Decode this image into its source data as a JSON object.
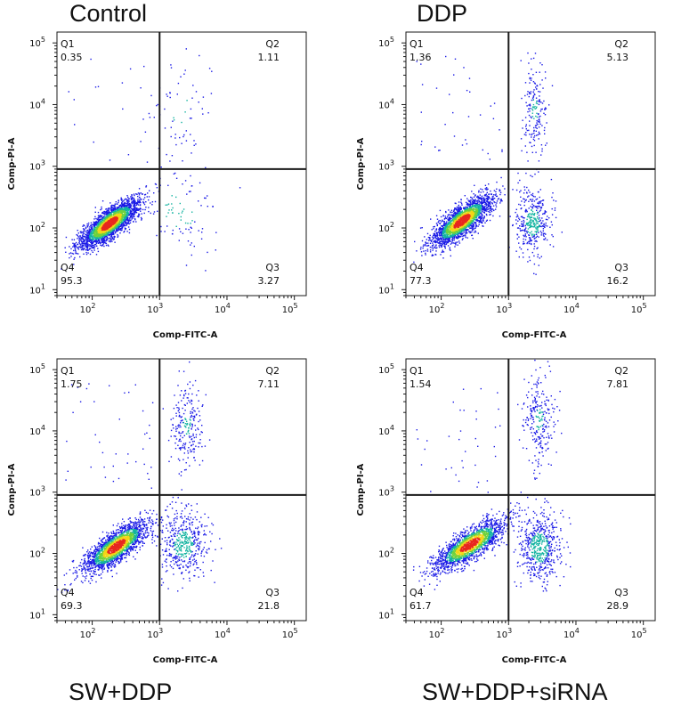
{
  "chart_data": [
    {
      "type": "scatter",
      "title": "Control",
      "xlabel": "Comp-FITC-A",
      "ylabel": "Comp-PI-A",
      "xscale": "log",
      "yscale": "log",
      "xlim": [
        30,
        150000
      ],
      "ylim": [
        8,
        150000
      ],
      "gate": {
        "x": 1000,
        "y": 900
      },
      "x_ticks": [
        {
          "base": "10",
          "exp": "2"
        },
        {
          "base": "10",
          "exp": "3"
        },
        {
          "base": "10",
          "exp": "4"
        },
        {
          "base": "10",
          "exp": "5"
        }
      ],
      "y_ticks": [
        {
          "base": "10",
          "exp": "1"
        },
        {
          "base": "10",
          "exp": "2"
        },
        {
          "base": "10",
          "exp": "3"
        },
        {
          "base": "10",
          "exp": "4"
        },
        {
          "base": "10",
          "exp": "5"
        }
      ],
      "quadrants": {
        "Q1": {
          "label": "Q1",
          "value": "0.35"
        },
        "Q2": {
          "label": "Q2",
          "value": "1.11"
        },
        "Q3": {
          "label": "Q3",
          "value": "3.27"
        },
        "Q4": {
          "label": "Q4",
          "value": "95.3"
        }
      }
    },
    {
      "type": "scatter",
      "title": "DDP",
      "xlabel": "Comp-FITC-A",
      "ylabel": "Comp-PI-A",
      "xscale": "log",
      "yscale": "log",
      "xlim": [
        30,
        150000
      ],
      "ylim": [
        8,
        150000
      ],
      "gate": {
        "x": 1000,
        "y": 900
      },
      "x_ticks": [
        {
          "base": "10",
          "exp": "2"
        },
        {
          "base": "10",
          "exp": "3"
        },
        {
          "base": "10",
          "exp": "4"
        },
        {
          "base": "10",
          "exp": "5"
        }
      ],
      "y_ticks": [
        {
          "base": "10",
          "exp": "1"
        },
        {
          "base": "10",
          "exp": "2"
        },
        {
          "base": "10",
          "exp": "3"
        },
        {
          "base": "10",
          "exp": "4"
        },
        {
          "base": "10",
          "exp": "5"
        }
      ],
      "quadrants": {
        "Q1": {
          "label": "Q1",
          "value": "1.36"
        },
        "Q2": {
          "label": "Q2",
          "value": "5.13"
        },
        "Q3": {
          "label": "Q3",
          "value": "16.2"
        },
        "Q4": {
          "label": "Q4",
          "value": "77.3"
        }
      }
    },
    {
      "type": "scatter",
      "title": "SW+DDP",
      "xlabel": "Comp-FITC-A",
      "ylabel": "Comp-PI-A",
      "xscale": "log",
      "yscale": "log",
      "xlim": [
        30,
        150000
      ],
      "ylim": [
        8,
        150000
      ],
      "gate": {
        "x": 1000,
        "y": 900
      },
      "x_ticks": [
        {
          "base": "10",
          "exp": "2"
        },
        {
          "base": "10",
          "exp": "3"
        },
        {
          "base": "10",
          "exp": "4"
        },
        {
          "base": "10",
          "exp": "5"
        }
      ],
      "y_ticks": [
        {
          "base": "10",
          "exp": "1"
        },
        {
          "base": "10",
          "exp": "2"
        },
        {
          "base": "10",
          "exp": "3"
        },
        {
          "base": "10",
          "exp": "4"
        },
        {
          "base": "10",
          "exp": "5"
        }
      ],
      "quadrants": {
        "Q1": {
          "label": "Q1",
          "value": "1.75"
        },
        "Q2": {
          "label": "Q2",
          "value": "7.11"
        },
        "Q3": {
          "label": "Q3",
          "value": "21.8"
        },
        "Q4": {
          "label": "Q4",
          "value": "69.3"
        }
      }
    },
    {
      "type": "scatter",
      "title": "SW+DDP+siRNA",
      "xlabel": "Comp-FITC-A",
      "ylabel": "Comp-PI-A",
      "xscale": "log",
      "yscale": "log",
      "xlim": [
        30,
        150000
      ],
      "ylim": [
        8,
        150000
      ],
      "gate": {
        "x": 1000,
        "y": 900
      },
      "x_ticks": [
        {
          "base": "10",
          "exp": "2"
        },
        {
          "base": "10",
          "exp": "3"
        },
        {
          "base": "10",
          "exp": "4"
        },
        {
          "base": "10",
          "exp": "5"
        }
      ],
      "y_ticks": [
        {
          "base": "10",
          "exp": "1"
        },
        {
          "base": "10",
          "exp": "2"
        },
        {
          "base": "10",
          "exp": "3"
        },
        {
          "base": "10",
          "exp": "4"
        },
        {
          "base": "10",
          "exp": "5"
        }
      ],
      "quadrants": {
        "Q1": {
          "label": "Q1",
          "value": "1.54"
        },
        "Q2": {
          "label": "Q2",
          "value": "7.81"
        },
        "Q3": {
          "label": "Q3",
          "value": "28.9"
        },
        "Q4": {
          "label": "Q4",
          "value": "61.7"
        }
      }
    }
  ],
  "colors": {
    "density_low": "#1a1ae6",
    "density_mid": "#12b3a0",
    "density_high_1": "#6fd23c",
    "density_high_2": "#f4d617",
    "density_peak": "#e8281e",
    "axis": "#1a1a1a",
    "gate": "#1a1a1a"
  }
}
